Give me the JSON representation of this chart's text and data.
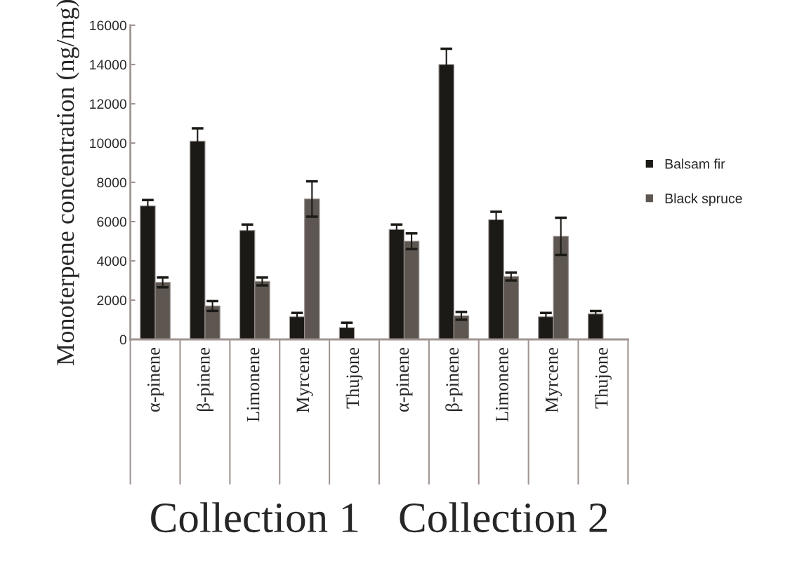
{
  "chart_data": {
    "type": "bar",
    "ylabel": "Monoterpene concentration (ng/mg)",
    "categories": [
      "α-pinene",
      "β-pinene",
      "Limonene",
      "Myrcene",
      "Thujone",
      "α-pinene",
      "β-pinene",
      "Limonene",
      "Myrcene",
      "Thujone"
    ],
    "series": [
      {
        "name": "Balsam fir",
        "color": "#1b1a16",
        "values": [
          6800,
          10100,
          5550,
          1150,
          600,
          5600,
          14000,
          6100,
          1150,
          1300
        ],
        "errors": [
          300,
          650,
          300,
          200,
          250,
          250,
          800,
          400,
          200,
          150
        ]
      },
      {
        "name": "Black spruce",
        "color": "#5e5751",
        "values": [
          2900,
          1700,
          2950,
          7150,
          null,
          5000,
          1200,
          3200,
          5250,
          null
        ],
        "errors": [
          250,
          250,
          200,
          900,
          null,
          400,
          200,
          200,
          950,
          null
        ]
      }
    ],
    "ylim": [
      0,
      16000
    ],
    "yticks": [
      0,
      2000,
      4000,
      6000,
      8000,
      10000,
      12000,
      14000,
      16000
    ],
    "legend": "right",
    "grid": false,
    "annotations": [
      "Collection 1",
      "Collection 2"
    ]
  }
}
